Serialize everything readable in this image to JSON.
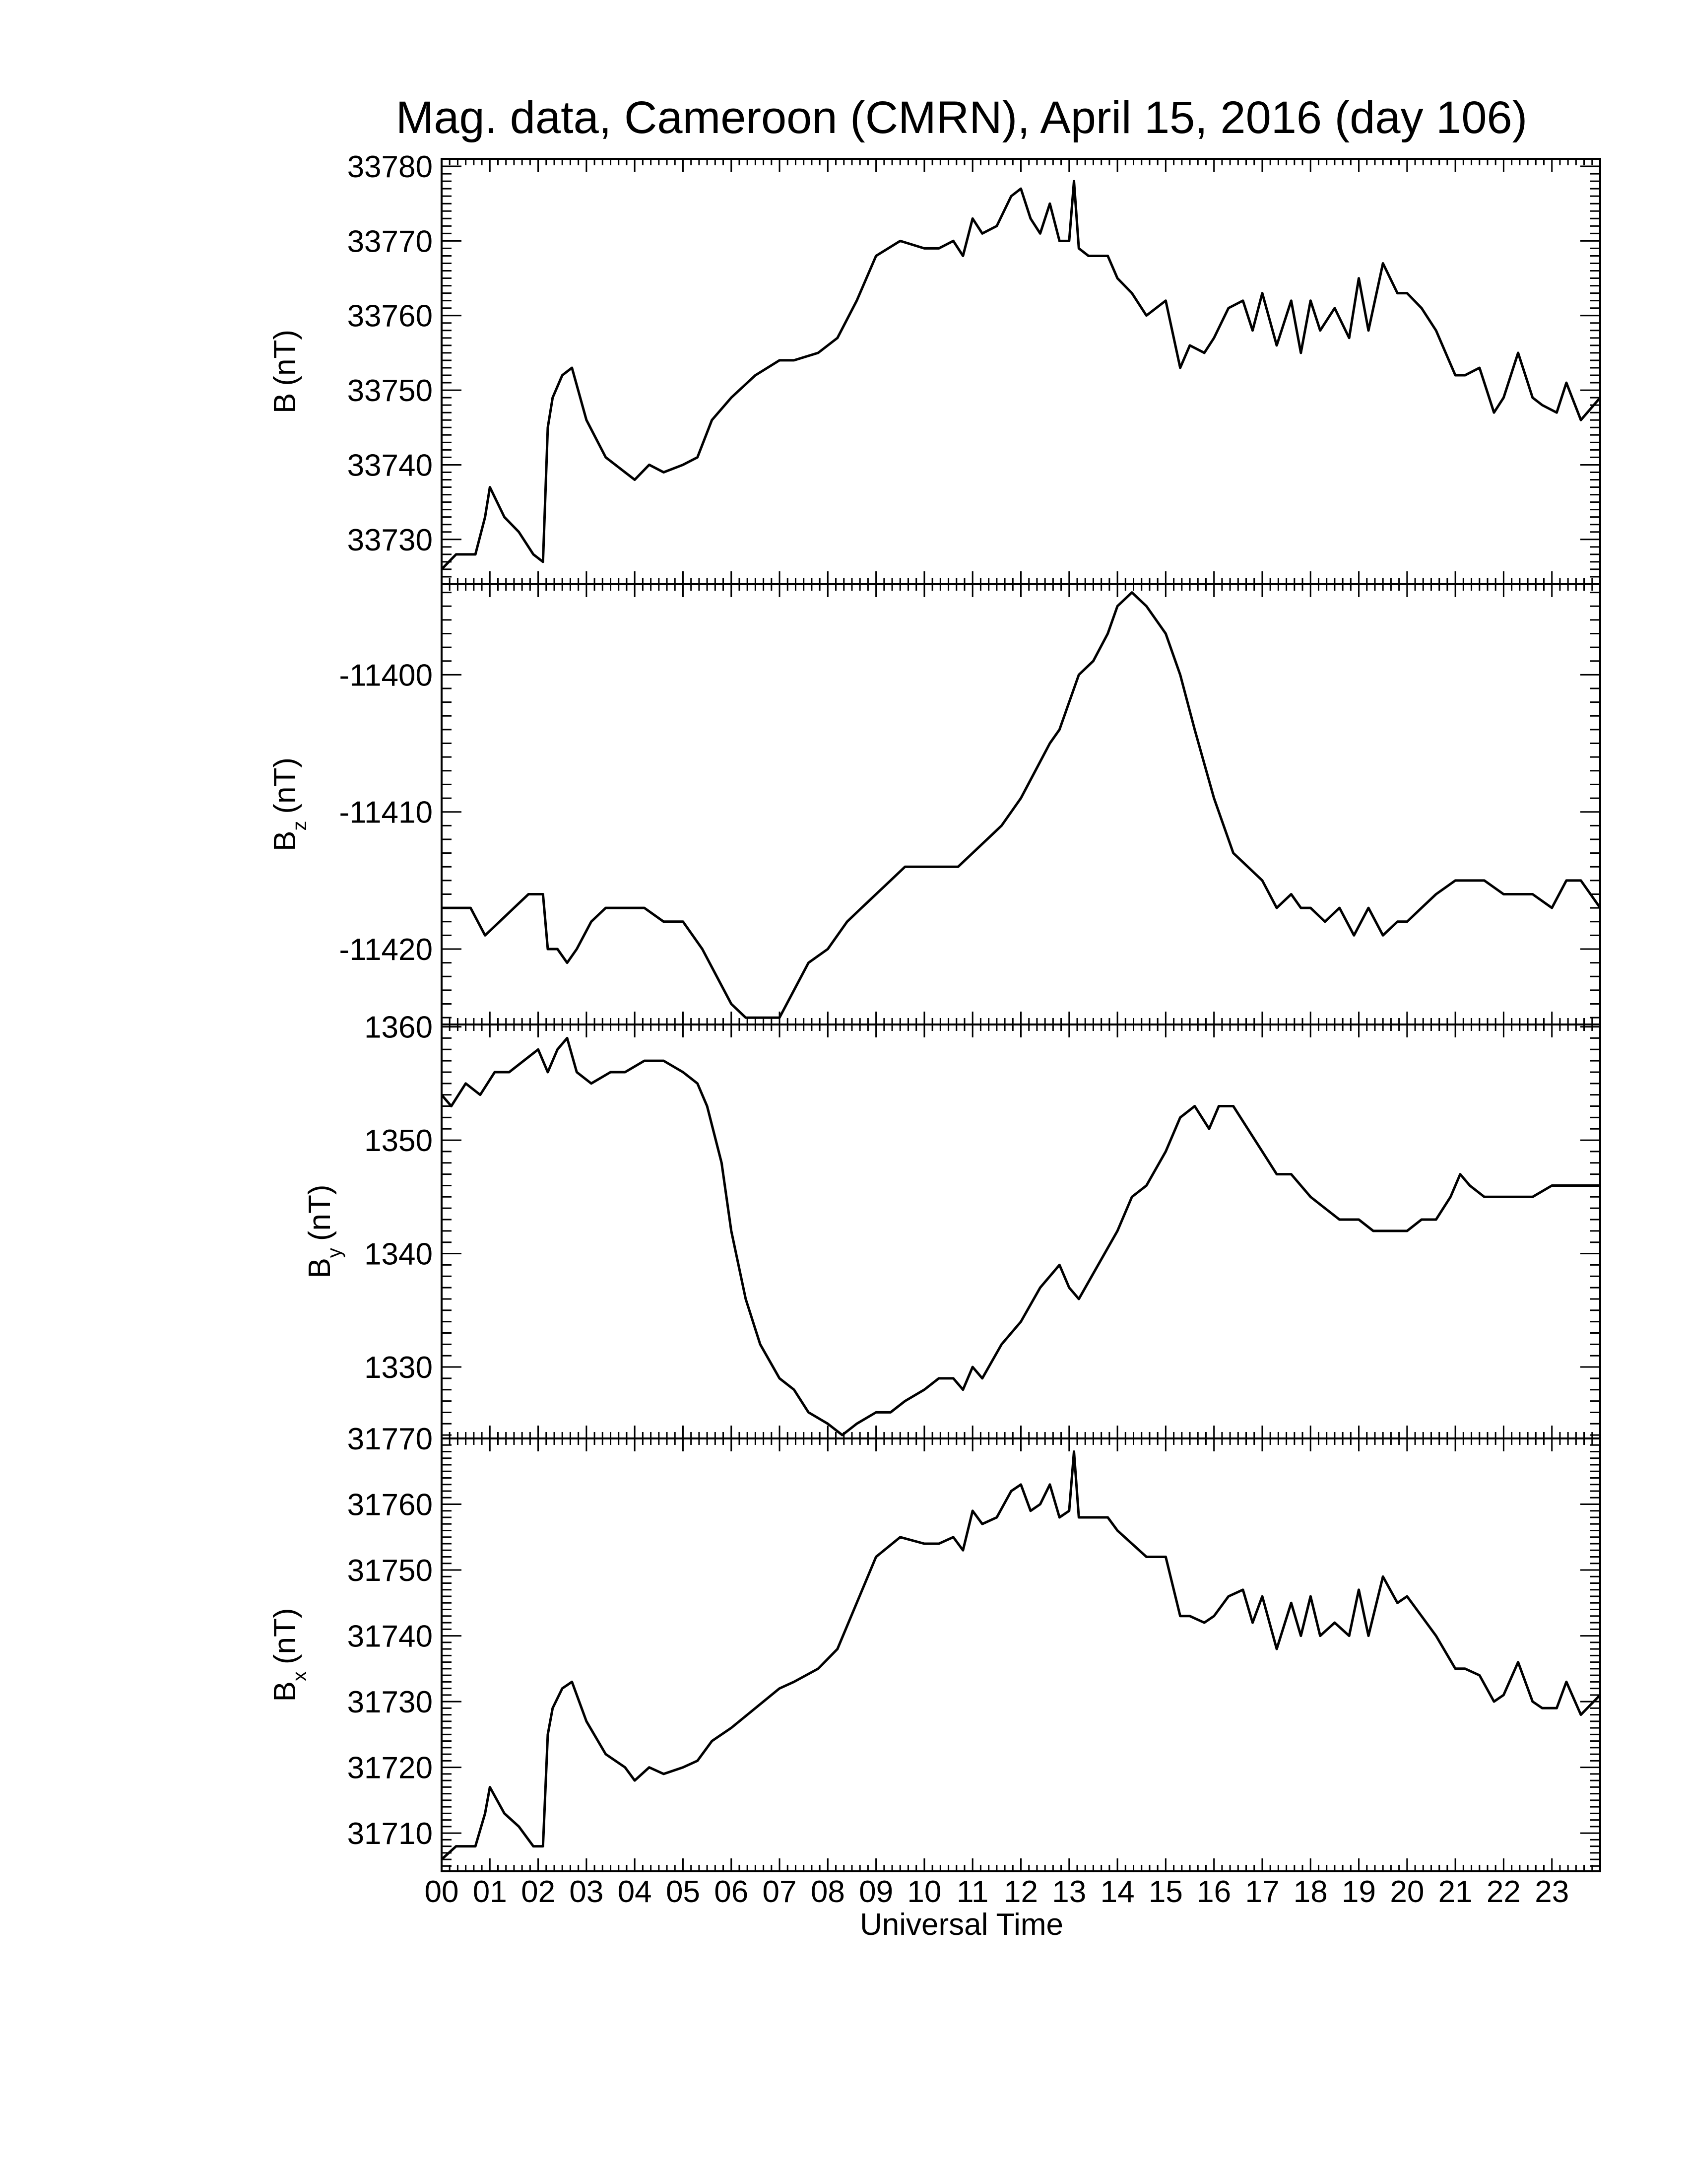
{
  "chart_data": {
    "type": "line",
    "title": "Mag. data, Cameroon (CMRN), April 15, 2016 (day 106)",
    "xlabel": "Universal Time",
    "x_ticks": [
      "00",
      "01",
      "02",
      "03",
      "04",
      "05",
      "06",
      "07",
      "08",
      "09",
      "10",
      "11",
      "12",
      "13",
      "14",
      "15",
      "16",
      "17",
      "18",
      "19",
      "20",
      "21",
      "22",
      "23"
    ],
    "xlim": [
      0,
      24
    ],
    "grid": false,
    "panels": [
      {
        "name": "B",
        "ylabel": "B (nT)",
        "ylabel_main": "B",
        "ylabel_sub": "",
        "ylabel_unit": "(nT)",
        "ylim": [
          33724,
          33781
        ],
        "yticks": [
          33730,
          33740,
          33750,
          33760,
          33770,
          33780
        ],
        "series": [
          {
            "x": [
              0,
              0.3,
              0.7,
              0.9,
              1.0,
              1.3,
              1.6,
              1.9,
              2.1,
              2.2,
              2.3,
              2.5,
              2.7,
              3.0,
              3.4,
              3.8,
              4.0,
              4.3,
              4.6,
              5.0,
              5.3,
              5.6,
              6.0,
              6.5,
              7.0,
              7.3,
              7.8,
              8.2,
              8.6,
              9.0,
              9.5,
              10.0,
              10.3,
              10.6,
              10.8,
              11.0,
              11.2,
              11.5,
              11.8,
              12.0,
              12.2,
              12.4,
              12.6,
              12.8,
              13.0,
              13.1,
              13.2,
              13.4,
              13.8,
              14.0,
              14.3,
              14.6,
              15.0,
              15.3,
              15.5,
              15.8,
              16.0,
              16.3,
              16.6,
              16.8,
              17.0,
              17.3,
              17.6,
              17.8,
              18.0,
              18.2,
              18.5,
              18.8,
              19.0,
              19.2,
              19.5,
              19.8,
              20.0,
              20.3,
              20.6,
              21.0,
              21.2,
              21.5,
              21.8,
              22.0,
              22.3,
              22.6,
              22.8,
              23.1,
              23.3,
              23.6,
              24.0
            ],
            "y": [
              33726,
              33728,
              33728,
              33733,
              33737,
              33733,
              33731,
              33728,
              33727,
              33745,
              33749,
              33752,
              33753,
              33746,
              33741,
              33739,
              33738,
              33740,
              33739,
              33740,
              33741,
              33746,
              33749,
              33752,
              33754,
              33754,
              33755,
              33757,
              33762,
              33768,
              33770,
              33769,
              33769,
              33770,
              33768,
              33773,
              33771,
              33772,
              33776,
              33777,
              33773,
              33771,
              33775,
              33770,
              33770,
              33778,
              33769,
              33768,
              33768,
              33765,
              33763,
              33760,
              33762,
              33753,
              33756,
              33755,
              33757,
              33761,
              33762,
              33758,
              33763,
              33756,
              33762,
              33755,
              33762,
              33758,
              33761,
              33757,
              33765,
              33758,
              33767,
              33763,
              33763,
              33761,
              33758,
              33752,
              33752,
              33753,
              33747,
              33749,
              33755,
              33749,
              33748,
              33747,
              33751,
              33746,
              33749
            ]
          }
        ]
      },
      {
        "name": "Bz",
        "ylabel": "Bz (nT)",
        "ylabel_main": "B",
        "ylabel_sub": "z",
        "ylabel_unit": "(nT)",
        "ylim": [
          -11425.5,
          -11393.4
        ],
        "yticks": [
          -11420,
          -11410,
          -11400
        ],
        "series": [
          {
            "x": [
              0,
              0.3,
              0.6,
              0.9,
              1.2,
              1.5,
              1.8,
              2.1,
              2.2,
              2.4,
              2.6,
              2.8,
              3.1,
              3.4,
              3.8,
              4.2,
              4.6,
              5.0,
              5.4,
              5.7,
              6.0,
              6.3,
              6.6,
              7.0,
              7.3,
              7.6,
              8.0,
              8.4,
              8.7,
              9.0,
              9.3,
              9.6,
              10.0,
              10.4,
              10.7,
              11.0,
              11.3,
              11.6,
              12.0,
              12.3,
              12.6,
              12.8,
              13.0,
              13.2,
              13.5,
              13.8,
              14.0,
              14.3,
              14.6,
              15.0,
              15.3,
              15.6,
              16.0,
              16.4,
              16.7,
              17.0,
              17.3,
              17.6,
              17.8,
              18.0,
              18.3,
              18.6,
              18.9,
              19.2,
              19.5,
              19.8,
              20.0,
              20.3,
              20.6,
              21.0,
              21.3,
              21.6,
              22.0,
              22.3,
              22.6,
              23.0,
              23.3,
              23.6,
              24.0
            ],
            "y": [
              -11417,
              -11417,
              -11417,
              -11419,
              -11418,
              -11417,
              -11416,
              -11416,
              -11420,
              -11420,
              -11421,
              -11420,
              -11418,
              -11417,
              -11417,
              -11417,
              -11418,
              -11418,
              -11420,
              -11422,
              -11424,
              -11425,
              -11425,
              -11425,
              -11423,
              -11421,
              -11420,
              -11418,
              -11417,
              -11416,
              -11415,
              -11414,
              -11414,
              -11414,
              -11414,
              -11413,
              -11412,
              -11411,
              -11409,
              -11407,
              -11405,
              -11404,
              -11402,
              -11400,
              -11399,
              -11397,
              -11395,
              -11394,
              -11395,
              -11397,
              -11400,
              -11404,
              -11409,
              -11413,
              -11414,
              -11415,
              -11417,
              -11416,
              -11417,
              -11417,
              -11418,
              -11417,
              -11419,
              -11417,
              -11419,
              -11418,
              -11418,
              -11417,
              -11416,
              -11415,
              -11415,
              -11415,
              -11416,
              -11416,
              -11416,
              -11417,
              -11415,
              -11415,
              -11417
            ]
          }
        ]
      },
      {
        "name": "By",
        "ylabel": "By (nT)",
        "ylabel_main": "B",
        "ylabel_sub": "y",
        "ylabel_unit": "(nT)",
        "ylim": [
          1323.7,
          1360.2
        ],
        "yticks": [
          1330,
          1340,
          1350,
          1360
        ],
        "series": [
          {
            "x": [
              0,
              0.2,
              0.5,
              0.8,
              1.1,
              1.4,
              1.7,
              2.0,
              2.2,
              2.4,
              2.6,
              2.8,
              3.1,
              3.5,
              3.8,
              4.2,
              4.6,
              5.0,
              5.3,
              5.5,
              5.8,
              6.0,
              6.3,
              6.6,
              7.0,
              7.3,
              7.6,
              8.0,
              8.3,
              8.6,
              9.0,
              9.3,
              9.6,
              10.0,
              10.3,
              10.6,
              10.8,
              11.0,
              11.2,
              11.6,
              12.0,
              12.4,
              12.8,
              13.0,
              13.2,
              13.6,
              14.0,
              14.3,
              14.6,
              15.0,
              15.3,
              15.6,
              15.9,
              16.1,
              16.4,
              16.7,
              17.0,
              17.3,
              17.6,
              18.0,
              18.3,
              18.6,
              19.0,
              19.3,
              19.6,
              20.0,
              20.3,
              20.6,
              20.9,
              21.1,
              21.3,
              21.6,
              22.0,
              22.3,
              22.6,
              23.0,
              23.3,
              23.6,
              24.0
            ],
            "y": [
              1354,
              1353,
              1355,
              1354,
              1356,
              1356,
              1357,
              1358,
              1356,
              1358,
              1359,
              1356,
              1355,
              1356,
              1356,
              1357,
              1357,
              1356,
              1355,
              1353,
              1348,
              1342,
              1336,
              1332,
              1329,
              1328,
              1326,
              1325,
              1324,
              1325,
              1326,
              1326,
              1327,
              1328,
              1329,
              1329,
              1328,
              1330,
              1329,
              1332,
              1334,
              1337,
              1339,
              1337,
              1336,
              1339,
              1342,
              1345,
              1346,
              1349,
              1352,
              1353,
              1351,
              1353,
              1353,
              1351,
              1349,
              1347,
              1347,
              1345,
              1344,
              1343,
              1343,
              1342,
              1342,
              1342,
              1343,
              1343,
              1345,
              1347,
              1346,
              1345,
              1345,
              1345,
              1345,
              1346,
              1346,
              1346,
              1346
            ]
          }
        ]
      },
      {
        "name": "Bx",
        "ylabel": "Bx (nT)",
        "ylabel_main": "B",
        "ylabel_sub": "x",
        "ylabel_unit": "(nT)",
        "ylim": [
          31704.2,
          31770
        ],
        "yticks": [
          31710,
          31720,
          31730,
          31740,
          31750,
          31760,
          31770
        ],
        "series": [
          {
            "x": [
              0,
              0.3,
              0.7,
              0.9,
              1.0,
              1.3,
              1.6,
              1.9,
              2.1,
              2.2,
              2.3,
              2.5,
              2.7,
              3.0,
              3.4,
              3.8,
              4.0,
              4.3,
              4.6,
              5.0,
              5.3,
              5.6,
              6.0,
              6.5,
              7.0,
              7.3,
              7.8,
              8.2,
              8.6,
              9.0,
              9.5,
              10.0,
              10.3,
              10.6,
              10.8,
              11.0,
              11.2,
              11.5,
              11.8,
              12.0,
              12.2,
              12.4,
              12.6,
              12.8,
              13.0,
              13.1,
              13.2,
              13.4,
              13.8,
              14.0,
              14.3,
              14.6,
              15.0,
              15.3,
              15.5,
              15.8,
              16.0,
              16.3,
              16.6,
              16.8,
              17.0,
              17.3,
              17.6,
              17.8,
              18.0,
              18.2,
              18.5,
              18.8,
              19.0,
              19.2,
              19.5,
              19.8,
              20.0,
              20.3,
              20.6,
              21.0,
              21.2,
              21.5,
              21.8,
              22.0,
              22.3,
              22.6,
              22.8,
              23.1,
              23.3,
              23.6,
              24.0
            ],
            "y": [
              31706,
              31708,
              31708,
              31713,
              31717,
              31713,
              31711,
              31708,
              31708,
              31725,
              31729,
              31732,
              31733,
              31727,
              31722,
              31720,
              31718,
              31720,
              31719,
              31720,
              31721,
              31724,
              31726,
              31729,
              31732,
              31733,
              31735,
              31738,
              31745,
              31752,
              31755,
              31754,
              31754,
              31755,
              31753,
              31759,
              31757,
              31758,
              31762,
              31763,
              31759,
              31760,
              31763,
              31758,
              31759,
              31768,
              31758,
              31758,
              31758,
              31756,
              31754,
              31752,
              31752,
              31743,
              31743,
              31742,
              31743,
              31746,
              31747,
              31742,
              31746,
              31738,
              31745,
              31740,
              31746,
              31740,
              31742,
              31740,
              31747,
              31740,
              31749,
              31745,
              31746,
              31743,
              31740,
              31735,
              31735,
              31734,
              31730,
              31731,
              31736,
              31730,
              31729,
              31729,
              31733,
              31728,
              31731
            ]
          }
        ]
      }
    ]
  }
}
